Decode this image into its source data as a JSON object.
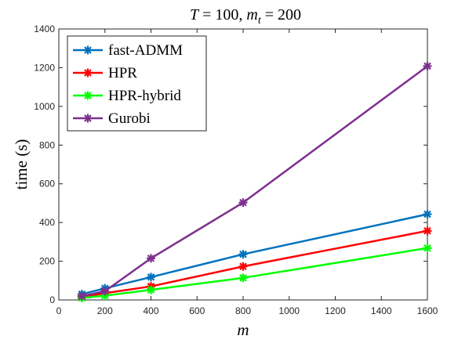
{
  "chart_data": {
    "type": "line",
    "title": "T = 100, m_t = 200",
    "title_parts": {
      "t_var": "T",
      "t_eq": " = 100, ",
      "m_var": "m",
      "m_sub": "t",
      "m_eq": " = 200"
    },
    "xlabel": "m",
    "ylabel": "time (s)",
    "xlim": [
      0,
      1600
    ],
    "ylim": [
      0,
      1400
    ],
    "xticks": [
      0,
      200,
      400,
      600,
      800,
      1000,
      1200,
      1400,
      1600
    ],
    "yticks": [
      0,
      200,
      400,
      600,
      800,
      1000,
      1200,
      1400
    ],
    "x": [
      100,
      200,
      400,
      800,
      1600
    ],
    "legend_position": "top-left",
    "grid": false,
    "series": [
      {
        "name": "fast-ADMM",
        "color": "#0072BD",
        "values": [
          30,
          60,
          118,
          236,
          443
        ]
      },
      {
        "name": "HPR",
        "color": "#FF0000",
        "values": [
          15,
          35,
          70,
          173,
          357
        ]
      },
      {
        "name": "HPR-hybrid",
        "color": "#00FF00",
        "values": [
          10,
          22,
          52,
          114,
          268
        ]
      },
      {
        "name": "Gurobi",
        "color": "#7E2F8E",
        "values": [
          20,
          45,
          215,
          503,
          1208
        ]
      }
    ]
  }
}
